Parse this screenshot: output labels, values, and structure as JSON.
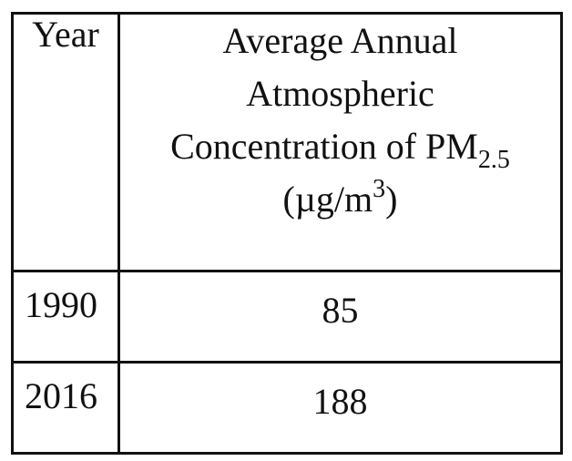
{
  "table": {
    "headers": {
      "year": "Year",
      "concentration": {
        "line1": "Average Annual",
        "line2": "Atmospheric",
        "line3_main": "Concentration of PM",
        "line3_sub": "2.5",
        "unit_main": "(µg/m",
        "unit_sup": "3",
        "unit_close": ")"
      }
    },
    "rows": [
      {
        "year": "1990",
        "value": "85"
      },
      {
        "year": "2016",
        "value": "188"
      }
    ]
  }
}
